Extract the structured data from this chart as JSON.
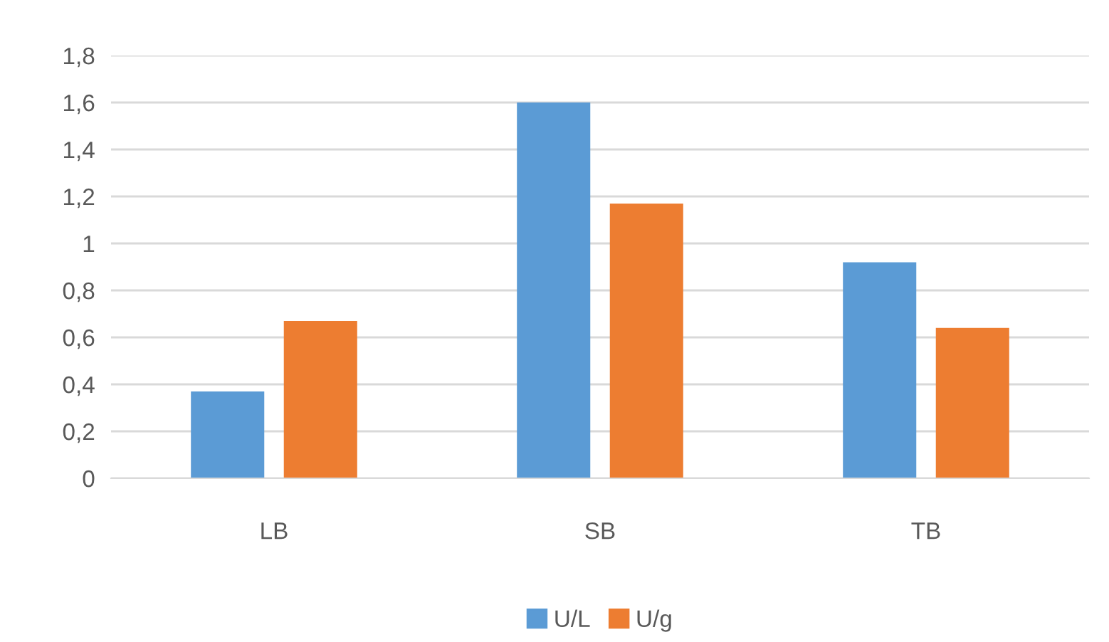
{
  "chart_data": {
    "type": "bar",
    "categories": [
      "LB",
      "SB",
      "TB"
    ],
    "series": [
      {
        "name": "U/L",
        "color": "#5b9bd5",
        "values": [
          0.37,
          1.6,
          0.92
        ]
      },
      {
        "name": "U/g",
        "color": "#ed7d31",
        "values": [
          0.67,
          1.17,
          0.64
        ]
      }
    ],
    "ylim": [
      0,
      1.8
    ],
    "yticks": [
      0,
      {
        "value": 0.2,
        "label": "0,2"
      },
      {
        "value": 0.4,
        "label": "0,4"
      },
      {
        "value": 0.6,
        "label": "0,6"
      },
      {
        "value": 0.8,
        "label": "0,8"
      },
      1,
      {
        "value": 1.2,
        "label": "1,2"
      },
      {
        "value": 1.4,
        "label": "1,4"
      },
      {
        "value": 1.6,
        "label": "1,6"
      },
      {
        "value": 1.8,
        "label": "1,8"
      }
    ],
    "grid": "y",
    "legend": "bottom"
  }
}
